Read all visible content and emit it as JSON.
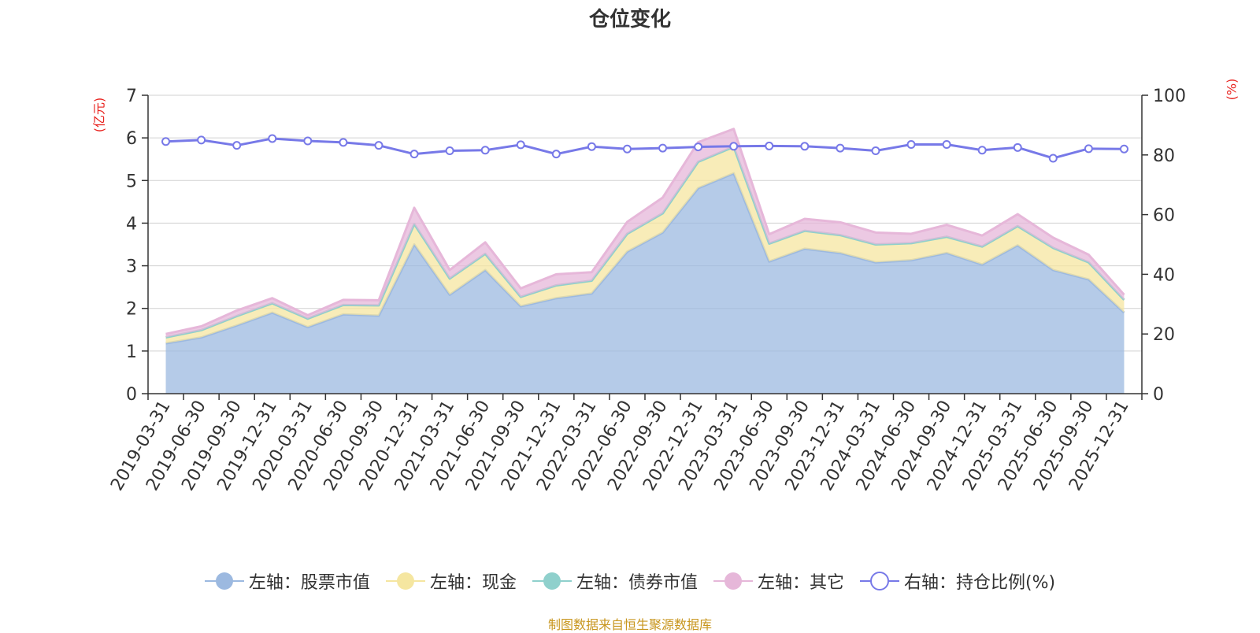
{
  "chart_data": {
    "type": "area",
    "title": "仓位变化",
    "left_axis_unit": "(亿元)",
    "right_axis_unit": "(%)",
    "left_ylim": [
      0,
      7
    ],
    "left_ticks": [
      "0",
      "1",
      "2",
      "3",
      "4",
      "5",
      "6",
      "7"
    ],
    "right_ylim": [
      0,
      100
    ],
    "right_ticks": [
      "0",
      "20",
      "40",
      "60",
      "80",
      "100"
    ],
    "categories": [
      "2019-03-31",
      "2019-06-30",
      "2019-09-30",
      "2019-12-31",
      "2020-03-31",
      "2020-06-30",
      "2020-09-30",
      "2020-12-31",
      "2021-03-31",
      "2021-06-30",
      "2021-09-30",
      "2021-12-31",
      "2022-03-31",
      "2022-06-30",
      "2022-09-30",
      "2022-12-31",
      "2023-03-31",
      "2023-06-30",
      "2023-09-30",
      "2023-12-31",
      "2024-03-31",
      "2024-06-30",
      "2024-09-30",
      "2024-12-31",
      "2025-03-31",
      "2025-06-30",
      "2025-09-30",
      "2025-12-31"
    ],
    "series": [
      {
        "name": "左轴：股票市值",
        "axis": "left",
        "stack": true,
        "color": "#9cb9e0",
        "values": [
          1.18,
          1.32,
          1.6,
          1.9,
          1.56,
          1.86,
          1.83,
          3.5,
          2.32,
          2.9,
          2.05,
          2.24,
          2.35,
          3.33,
          3.78,
          4.82,
          5.17,
          3.1,
          3.4,
          3.3,
          3.08,
          3.13,
          3.3,
          3.03,
          3.48,
          2.9,
          2.68,
          1.9
        ]
      },
      {
        "name": "左轴：现金",
        "axis": "left",
        "stack": true,
        "color": "#f5e6a0",
        "values": [
          0.14,
          0.17,
          0.22,
          0.22,
          0.2,
          0.22,
          0.24,
          0.48,
          0.38,
          0.38,
          0.22,
          0.3,
          0.3,
          0.42,
          0.45,
          0.62,
          0.62,
          0.42,
          0.42,
          0.42,
          0.42,
          0.4,
          0.38,
          0.42,
          0.45,
          0.52,
          0.4,
          0.3
        ]
      },
      {
        "name": "左轴：债券市值",
        "axis": "left",
        "stack": true,
        "color": "#8fd0cc",
        "values": [
          0,
          0,
          0,
          0,
          0,
          0,
          0,
          0,
          0,
          0,
          0,
          0,
          0,
          0,
          0,
          0,
          0,
          0,
          0,
          0,
          0,
          0,
          0,
          0,
          0,
          0,
          0,
          0
        ]
      },
      {
        "name": "左轴：其它",
        "axis": "left",
        "stack": true,
        "color": "#e6b7d9",
        "values": [
          0.08,
          0.09,
          0.13,
          0.12,
          0.08,
          0.12,
          0.12,
          0.38,
          0.2,
          0.27,
          0.2,
          0.26,
          0.2,
          0.28,
          0.37,
          0.46,
          0.42,
          0.22,
          0.28,
          0.3,
          0.28,
          0.22,
          0.28,
          0.26,
          0.28,
          0.24,
          0.18,
          0.12
        ]
      },
      {
        "name": "右轴：持仓比例(%)",
        "axis": "right",
        "type": "line",
        "color": "#7779e8",
        "values": [
          84.5,
          85,
          83.2,
          85.5,
          84.7,
          84.2,
          83.2,
          80.3,
          81.4,
          81.6,
          83.4,
          80.3,
          82.8,
          82,
          82.3,
          82.7,
          82.9,
          83,
          82.9,
          82.3,
          81.4,
          83.5,
          83.5,
          81.6,
          82.5,
          78.9,
          82.1,
          82
        ]
      }
    ],
    "source_note": "制图数据来自恒生聚源数据库"
  }
}
